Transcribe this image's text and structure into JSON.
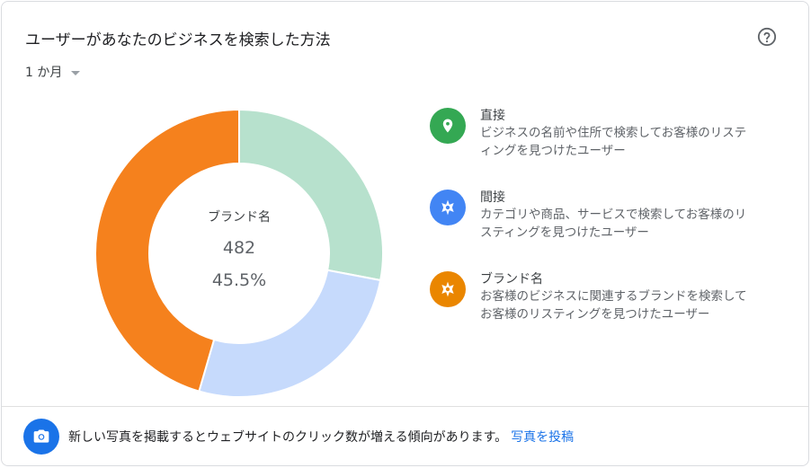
{
  "card": {
    "title": "ユーザーがあなたのビジネスを検索した方法",
    "period": "1 か月"
  },
  "chart_data": {
    "type": "pie",
    "series": [
      {
        "name": "直接",
        "value": 28.0,
        "color": "#b7e1cd"
      },
      {
        "name": "間接",
        "value": 26.5,
        "color": "#c6dafc"
      },
      {
        "name": "ブランド名",
        "value": 45.5,
        "color": "#f5811d"
      }
    ],
    "center": {
      "label": "ブランド名",
      "value": "482",
      "percent": "45.5%"
    }
  },
  "legend": [
    {
      "name": "直接",
      "desc": "ビジネスの名前や住所で検索してお客様のリスティングを見つけたユーザー",
      "icon": "map-pin-icon",
      "color": "#34a853"
    },
    {
      "name": "間接",
      "desc": "カテゴリや商品、サービスで検索してお客様のリスティングを見つけたユーザー",
      "icon": "compass-icon",
      "color": "#4285f4"
    },
    {
      "name": "ブランド名",
      "desc": "お客様のビジネスに関連するブランドを検索してお客様のリスティングを見つけたユーザー",
      "icon": "compass-icon",
      "color": "#ea8600"
    }
  ],
  "footer": {
    "message": "新しい写真を掲載するとウェブサイトのクリック数が増える傾向があります。",
    "link": "写真を投稿",
    "icon": "camera-icon"
  }
}
